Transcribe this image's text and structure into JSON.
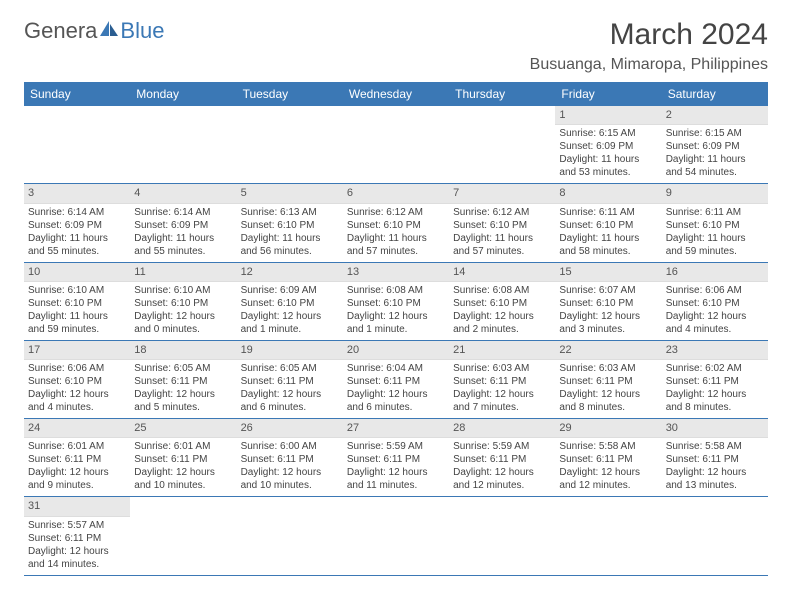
{
  "logo": {
    "text1": "Genera",
    "text2": "Blue"
  },
  "title": "March 2024",
  "location": "Busuanga, Mimaropa, Philippines",
  "weekdays": [
    "Sunday",
    "Monday",
    "Tuesday",
    "Wednesday",
    "Thursday",
    "Friday",
    "Saturday"
  ],
  "colors": {
    "header_bg": "#3b78b5",
    "header_text": "#ffffff",
    "daynum_bg": "#e8e8e8",
    "border": "#3b78b5",
    "body_text": "#444444"
  },
  "fonts": {
    "title_size_pt": 22,
    "location_size_pt": 12,
    "weekday_size_pt": 9,
    "cell_size_pt": 7.5
  },
  "weeks": [
    [
      {
        "n": "",
        "sr": "",
        "ss": "",
        "dl": ""
      },
      {
        "n": "",
        "sr": "",
        "ss": "",
        "dl": ""
      },
      {
        "n": "",
        "sr": "",
        "ss": "",
        "dl": ""
      },
      {
        "n": "",
        "sr": "",
        "ss": "",
        "dl": ""
      },
      {
        "n": "",
        "sr": "",
        "ss": "",
        "dl": ""
      },
      {
        "n": "1",
        "sr": "Sunrise: 6:15 AM",
        "ss": "Sunset: 6:09 PM",
        "dl": "Daylight: 11 hours and 53 minutes."
      },
      {
        "n": "2",
        "sr": "Sunrise: 6:15 AM",
        "ss": "Sunset: 6:09 PM",
        "dl": "Daylight: 11 hours and 54 minutes."
      }
    ],
    [
      {
        "n": "3",
        "sr": "Sunrise: 6:14 AM",
        "ss": "Sunset: 6:09 PM",
        "dl": "Daylight: 11 hours and 55 minutes."
      },
      {
        "n": "4",
        "sr": "Sunrise: 6:14 AM",
        "ss": "Sunset: 6:09 PM",
        "dl": "Daylight: 11 hours and 55 minutes."
      },
      {
        "n": "5",
        "sr": "Sunrise: 6:13 AM",
        "ss": "Sunset: 6:10 PM",
        "dl": "Daylight: 11 hours and 56 minutes."
      },
      {
        "n": "6",
        "sr": "Sunrise: 6:12 AM",
        "ss": "Sunset: 6:10 PM",
        "dl": "Daylight: 11 hours and 57 minutes."
      },
      {
        "n": "7",
        "sr": "Sunrise: 6:12 AM",
        "ss": "Sunset: 6:10 PM",
        "dl": "Daylight: 11 hours and 57 minutes."
      },
      {
        "n": "8",
        "sr": "Sunrise: 6:11 AM",
        "ss": "Sunset: 6:10 PM",
        "dl": "Daylight: 11 hours and 58 minutes."
      },
      {
        "n": "9",
        "sr": "Sunrise: 6:11 AM",
        "ss": "Sunset: 6:10 PM",
        "dl": "Daylight: 11 hours and 59 minutes."
      }
    ],
    [
      {
        "n": "10",
        "sr": "Sunrise: 6:10 AM",
        "ss": "Sunset: 6:10 PM",
        "dl": "Daylight: 11 hours and 59 minutes."
      },
      {
        "n": "11",
        "sr": "Sunrise: 6:10 AM",
        "ss": "Sunset: 6:10 PM",
        "dl": "Daylight: 12 hours and 0 minutes."
      },
      {
        "n": "12",
        "sr": "Sunrise: 6:09 AM",
        "ss": "Sunset: 6:10 PM",
        "dl": "Daylight: 12 hours and 1 minute."
      },
      {
        "n": "13",
        "sr": "Sunrise: 6:08 AM",
        "ss": "Sunset: 6:10 PM",
        "dl": "Daylight: 12 hours and 1 minute."
      },
      {
        "n": "14",
        "sr": "Sunrise: 6:08 AM",
        "ss": "Sunset: 6:10 PM",
        "dl": "Daylight: 12 hours and 2 minutes."
      },
      {
        "n": "15",
        "sr": "Sunrise: 6:07 AM",
        "ss": "Sunset: 6:10 PM",
        "dl": "Daylight: 12 hours and 3 minutes."
      },
      {
        "n": "16",
        "sr": "Sunrise: 6:06 AM",
        "ss": "Sunset: 6:10 PM",
        "dl": "Daylight: 12 hours and 4 minutes."
      }
    ],
    [
      {
        "n": "17",
        "sr": "Sunrise: 6:06 AM",
        "ss": "Sunset: 6:10 PM",
        "dl": "Daylight: 12 hours and 4 minutes."
      },
      {
        "n": "18",
        "sr": "Sunrise: 6:05 AM",
        "ss": "Sunset: 6:11 PM",
        "dl": "Daylight: 12 hours and 5 minutes."
      },
      {
        "n": "19",
        "sr": "Sunrise: 6:05 AM",
        "ss": "Sunset: 6:11 PM",
        "dl": "Daylight: 12 hours and 6 minutes."
      },
      {
        "n": "20",
        "sr": "Sunrise: 6:04 AM",
        "ss": "Sunset: 6:11 PM",
        "dl": "Daylight: 12 hours and 6 minutes."
      },
      {
        "n": "21",
        "sr": "Sunrise: 6:03 AM",
        "ss": "Sunset: 6:11 PM",
        "dl": "Daylight: 12 hours and 7 minutes."
      },
      {
        "n": "22",
        "sr": "Sunrise: 6:03 AM",
        "ss": "Sunset: 6:11 PM",
        "dl": "Daylight: 12 hours and 8 minutes."
      },
      {
        "n": "23",
        "sr": "Sunrise: 6:02 AM",
        "ss": "Sunset: 6:11 PM",
        "dl": "Daylight: 12 hours and 8 minutes."
      }
    ],
    [
      {
        "n": "24",
        "sr": "Sunrise: 6:01 AM",
        "ss": "Sunset: 6:11 PM",
        "dl": "Daylight: 12 hours and 9 minutes."
      },
      {
        "n": "25",
        "sr": "Sunrise: 6:01 AM",
        "ss": "Sunset: 6:11 PM",
        "dl": "Daylight: 12 hours and 10 minutes."
      },
      {
        "n": "26",
        "sr": "Sunrise: 6:00 AM",
        "ss": "Sunset: 6:11 PM",
        "dl": "Daylight: 12 hours and 10 minutes."
      },
      {
        "n": "27",
        "sr": "Sunrise: 5:59 AM",
        "ss": "Sunset: 6:11 PM",
        "dl": "Daylight: 12 hours and 11 minutes."
      },
      {
        "n": "28",
        "sr": "Sunrise: 5:59 AM",
        "ss": "Sunset: 6:11 PM",
        "dl": "Daylight: 12 hours and 12 minutes."
      },
      {
        "n": "29",
        "sr": "Sunrise: 5:58 AM",
        "ss": "Sunset: 6:11 PM",
        "dl": "Daylight: 12 hours and 12 minutes."
      },
      {
        "n": "30",
        "sr": "Sunrise: 5:58 AM",
        "ss": "Sunset: 6:11 PM",
        "dl": "Daylight: 12 hours and 13 minutes."
      }
    ],
    [
      {
        "n": "31",
        "sr": "Sunrise: 5:57 AM",
        "ss": "Sunset: 6:11 PM",
        "dl": "Daylight: 12 hours and 14 minutes."
      },
      {
        "n": "",
        "sr": "",
        "ss": "",
        "dl": ""
      },
      {
        "n": "",
        "sr": "",
        "ss": "",
        "dl": ""
      },
      {
        "n": "",
        "sr": "",
        "ss": "",
        "dl": ""
      },
      {
        "n": "",
        "sr": "",
        "ss": "",
        "dl": ""
      },
      {
        "n": "",
        "sr": "",
        "ss": "",
        "dl": ""
      },
      {
        "n": "",
        "sr": "",
        "ss": "",
        "dl": ""
      }
    ]
  ]
}
